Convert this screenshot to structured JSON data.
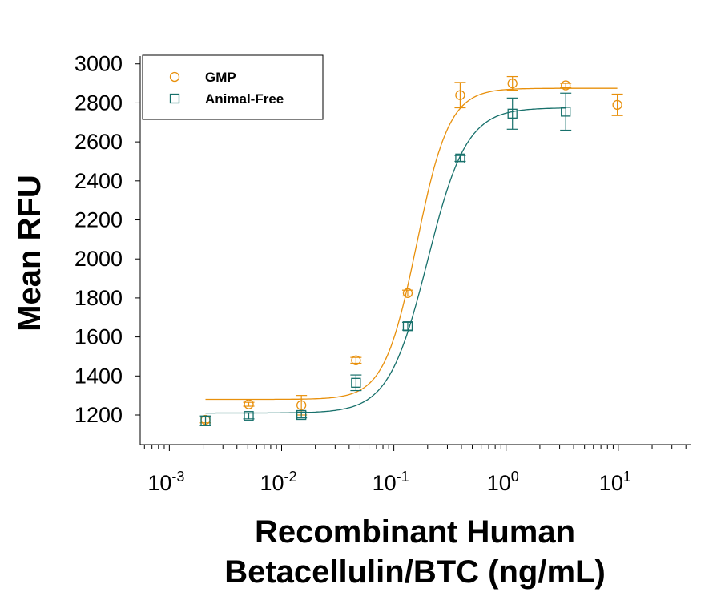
{
  "chart_data": {
    "type": "scatter",
    "xlabel_line1": "Recombinant Human",
    "xlabel_line2": "Betacellulin/BTC (ng/mL)",
    "ylabel": "Mean RFU",
    "xscale": "log",
    "xlim": [
      0.00055,
      44
    ],
    "ylim": [
      1048,
      3040
    ],
    "yticks": [
      1200,
      1400,
      1600,
      1800,
      2000,
      2200,
      2400,
      2600,
      2800,
      3000
    ],
    "xtick_exponents": [
      "-3",
      "-2",
      "-1",
      "0",
      "1"
    ],
    "xtick_base": "10",
    "legend_position": "top-left",
    "grid": false,
    "series": [
      {
        "name": "GMP",
        "color": "#E8900C",
        "marker": "circle",
        "x": [
          0.0021,
          0.0051,
          0.015,
          0.046,
          0.133,
          0.39,
          1.14,
          3.4,
          9.8
        ],
        "y": [
          1175,
          1255,
          1250,
          1480,
          1825,
          2840,
          2900,
          2890,
          2790
        ],
        "err": [
          15,
          10,
          50,
          15,
          15,
          65,
          35,
          10,
          55
        ],
        "fit": {
          "bottom": 1280,
          "top": 2875,
          "ec50": 0.16,
          "hill": 3.0
        }
      },
      {
        "name": "Animal-Free",
        "color": "#17706B",
        "marker": "square",
        "x": [
          0.0021,
          0.0051,
          0.015,
          0.046,
          0.133,
          0.39,
          1.14,
          3.4
        ],
        "y": [
          1170,
          1195,
          1200,
          1365,
          1655,
          2515,
          2745,
          2755
        ],
        "err": [
          25,
          15,
          15,
          40,
          20,
          15,
          80,
          95
        ],
        "fit": {
          "bottom": 1210,
          "top": 2775,
          "ec50": 0.2,
          "hill": 2.5
        }
      }
    ]
  }
}
